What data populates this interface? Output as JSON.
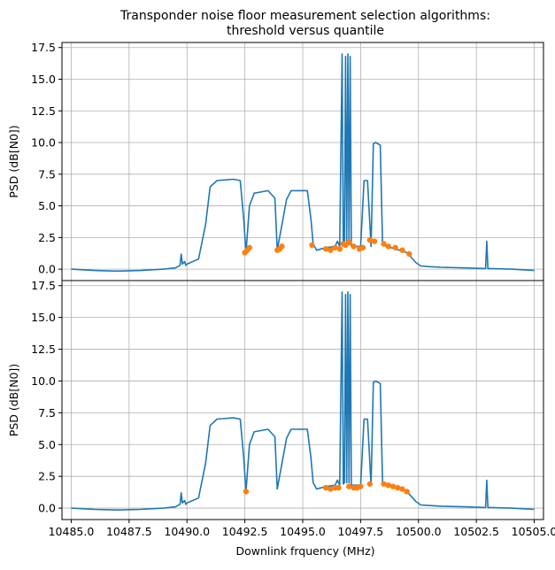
{
  "chart_data": {
    "type": "line",
    "title": "Transponder noise floor measurement selection algorithms:",
    "subtitle": "threshold versus quantile",
    "xlabel": "Downlink frquency (MHz)",
    "ylabel": "PSD (dB[N0])",
    "xlim": [
      10484.6,
      10505.4
    ],
    "ylim": [
      -0.9,
      17.9
    ],
    "x_ticks": [
      10485.0,
      10487.5,
      10490.0,
      10492.5,
      10495.0,
      10497.5,
      10500.0,
      10502.5,
      10505.0
    ],
    "x_tick_labels": [
      "10485.0",
      "10487.5",
      "10490.0",
      "10492.5",
      "10495.0",
      "10497.5",
      "10500.0",
      "10502.5",
      "10505.0"
    ],
    "y_ticks": [
      0.0,
      2.5,
      5.0,
      7.5,
      10.0,
      12.5,
      15.0,
      17.5
    ],
    "y_tick_labels": [
      "0.0",
      "2.5",
      "5.0",
      "7.5",
      "10.0",
      "12.5",
      "15.0",
      "17.5"
    ],
    "grid": true,
    "colors": {
      "spectrum": "#1f77b4",
      "selected": "#ff7f0e"
    },
    "spectrum": {
      "x": [
        10485.0,
        10486.0,
        10487.0,
        10488.0,
        10489.0,
        10489.5,
        10489.7,
        10489.75,
        10489.8,
        10489.9,
        10489.95,
        10490.0,
        10490.5,
        10490.8,
        10491.0,
        10491.3,
        10492.0,
        10492.3,
        10492.45,
        10492.55,
        10492.7,
        10492.9,
        10493.5,
        10493.8,
        10493.9,
        10494.1,
        10494.3,
        10494.5,
        10495.2,
        10495.35,
        10495.45,
        10495.6,
        10496.0,
        10496.4,
        10496.5,
        10496.6,
        10496.7,
        10496.75,
        10496.8,
        10496.85,
        10496.9,
        10496.95,
        10497.0,
        10497.05,
        10497.1,
        10497.5,
        10497.65,
        10497.8,
        10497.95,
        10498.05,
        10498.15,
        10498.35,
        10498.45,
        10498.6,
        10499.0,
        10499.5,
        10499.9,
        10500.1,
        10500.5,
        10501.0,
        10502.0,
        10502.9,
        10502.95,
        10503.0,
        10503.05,
        10503.1,
        10504.0,
        10505.0
      ],
      "y": [
        0.0,
        -0.1,
        -0.15,
        -0.1,
        0.0,
        0.1,
        0.3,
        1.2,
        0.4,
        0.6,
        0.3,
        0.4,
        0.8,
        3.5,
        6.5,
        7.0,
        7.1,
        7.0,
        4.0,
        1.3,
        5.0,
        6.0,
        6.2,
        5.6,
        1.5,
        3.5,
        5.5,
        6.2,
        6.2,
        4.0,
        2.0,
        1.5,
        1.7,
        1.8,
        2.2,
        1.8,
        17.0,
        1.9,
        2.0,
        16.8,
        2.0,
        17.0,
        2.0,
        16.8,
        1.8,
        1.8,
        7.0,
        7.0,
        1.8,
        9.9,
        10.0,
        9.8,
        2.0,
        1.8,
        1.6,
        1.3,
        0.5,
        0.25,
        0.2,
        0.15,
        0.1,
        0.05,
        2.2,
        0.05,
        0.05,
        0.05,
        0.0,
        -0.1
      ]
    },
    "panels": [
      {
        "name": "threshold",
        "selected_x": [
          10492.5,
          10492.6,
          10492.7,
          10493.9,
          10494.0,
          10494.1,
          10495.4,
          10496.0,
          10496.2,
          10496.4,
          10496.6,
          10496.75,
          10496.85,
          10497.0,
          10497.2,
          10497.45,
          10497.6,
          10497.9,
          10498.1,
          10498.5,
          10498.7,
          10499.0,
          10499.3,
          10499.6
        ],
        "selected_y": [
          1.3,
          1.5,
          1.7,
          1.5,
          1.6,
          1.8,
          1.9,
          1.6,
          1.5,
          1.7,
          1.6,
          2.0,
          1.9,
          2.1,
          1.8,
          1.6,
          1.7,
          2.3,
          2.2,
          2.0,
          1.8,
          1.7,
          1.5,
          1.2
        ]
      },
      {
        "name": "quantile",
        "selected_x": [
          10492.55,
          10496.0,
          10496.2,
          10496.4,
          10496.55,
          10497.0,
          10497.2,
          10497.35,
          10497.5,
          10497.9,
          10498.5,
          10498.7,
          10498.9,
          10499.1,
          10499.3,
          10499.5
        ],
        "selected_y": [
          1.3,
          1.6,
          1.5,
          1.6,
          1.6,
          1.7,
          1.6,
          1.6,
          1.7,
          1.9,
          1.9,
          1.8,
          1.7,
          1.6,
          1.5,
          1.3
        ]
      }
    ]
  }
}
